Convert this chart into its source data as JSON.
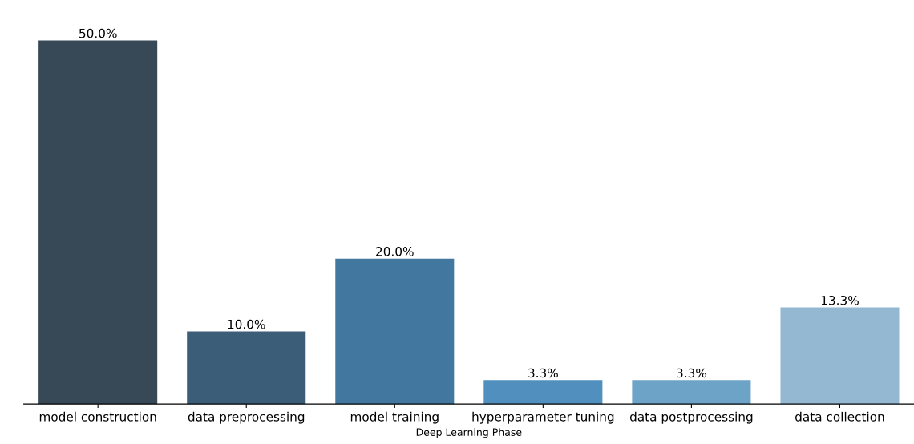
{
  "chart_data": {
    "type": "bar",
    "xlabel": "Deep Learning Phase",
    "categories": [
      "model construction",
      "data preprocessing",
      "model training",
      "hyperparameter tuning",
      "data postprocessing",
      "data collection"
    ],
    "values": [
      50.0,
      10.0,
      20.0,
      3.3,
      3.3,
      13.3
    ],
    "value_labels": [
      "50.0%",
      "10.0%",
      "20.0%",
      "3.3%",
      "3.3%",
      "13.3%"
    ],
    "colors": [
      "#374856",
      "#3c5d78",
      "#42789f",
      "#508fbe",
      "#6ea3c8",
      "#94b8d2"
    ],
    "grid": false,
    "legend": false
  }
}
